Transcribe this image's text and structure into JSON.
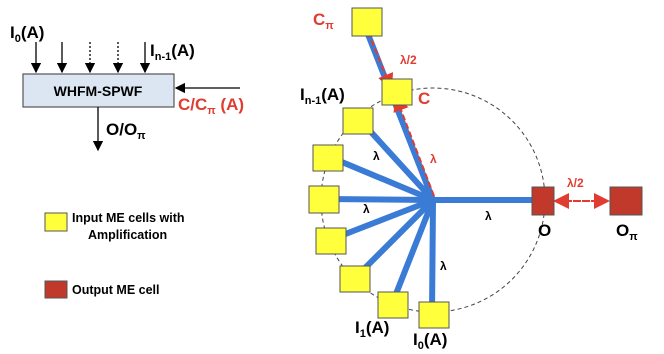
{
  "block": {
    "title": "WHFM-SPWF",
    "input_first": "I",
    "input_first_sub": "0",
    "input_first_suffix": "(A)",
    "input_last": "I",
    "input_last_sub": "n-1",
    "input_last_suffix": "(A)",
    "control": "C/C",
    "control_sub": "π",
    "control_suffix": " (A)",
    "output": "O/O",
    "output_sub": "π"
  },
  "legend": {
    "input_line1": "Input ME cells with",
    "input_line2": "Amplification",
    "output": "Output ME cell"
  },
  "diagram": {
    "c_pi": "C",
    "c_pi_sub": "π",
    "c_label": "C",
    "half_lambda_top": "λ/2",
    "half_lambda_right": "λ/2",
    "lambda": "λ",
    "in_n1": "I",
    "in_n1_sub": "n-1",
    "in_n1_suffix": "(A)",
    "in_1": "I",
    "in_1_sub": "1",
    "in_1_suffix": "(A)",
    "in_0": "I",
    "in_0_sub": "0",
    "in_0_suffix": "(A)",
    "out_o": "O",
    "out_pi": "O",
    "out_pi_sub": "π"
  },
  "colors": {
    "blue": "#3a7bd5",
    "red": "#e03c31",
    "yellow": "#ffff3c",
    "dark_red": "#c0392b",
    "box_fill": "#dce6f2"
  }
}
